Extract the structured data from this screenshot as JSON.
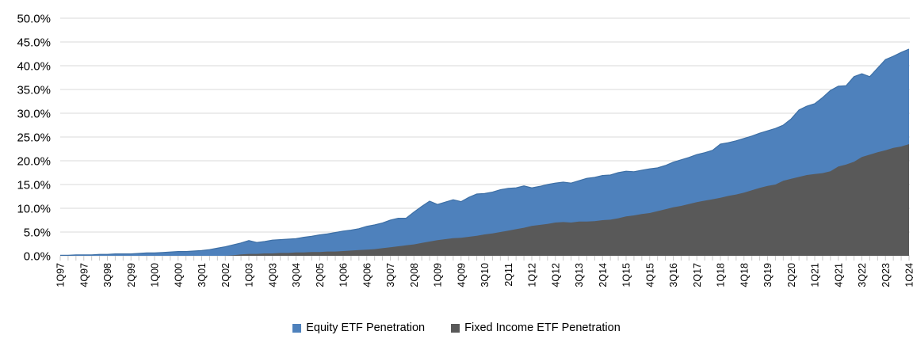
{
  "chart_data": {
    "type": "area",
    "title": "",
    "overlapping": true,
    "grid": true,
    "legend_position": "bottom",
    "ylim": [
      0,
      50
    ],
    "y_tick_labels": [
      "0.0%",
      "5.0%",
      "10.0%",
      "15.0%",
      "20.0%",
      "25.0%",
      "30.0%",
      "35.0%",
      "40.0%",
      "45.0%",
      "50.0%"
    ],
    "x_labels_shown_every": 3,
    "x": [
      "1Q97",
      "2Q97",
      "3Q97",
      "4Q97",
      "1Q98",
      "2Q98",
      "3Q98",
      "4Q98",
      "1Q99",
      "2Q99",
      "3Q99",
      "4Q99",
      "1Q00",
      "2Q00",
      "3Q00",
      "4Q00",
      "1Q01",
      "2Q01",
      "3Q01",
      "4Q01",
      "1Q02",
      "2Q02",
      "3Q02",
      "4Q02",
      "1Q03",
      "2Q03",
      "3Q03",
      "4Q03",
      "1Q04",
      "2Q04",
      "3Q04",
      "4Q04",
      "1Q05",
      "2Q05",
      "3Q05",
      "4Q05",
      "1Q06",
      "2Q06",
      "3Q06",
      "4Q06",
      "1Q07",
      "2Q07",
      "3Q07",
      "4Q07",
      "1Q08",
      "2Q08",
      "3Q08",
      "4Q08",
      "1Q09",
      "2Q09",
      "3Q09",
      "4Q09",
      "1Q10",
      "2Q10",
      "3Q10",
      "4Q10",
      "1Q11",
      "2Q11",
      "3Q11",
      "4Q11",
      "1Q12",
      "2Q12",
      "3Q12",
      "4Q12",
      "1Q13",
      "2Q13",
      "3Q13",
      "4Q13",
      "1Q14",
      "2Q14",
      "3Q14",
      "4Q14",
      "1Q15",
      "2Q15",
      "3Q15",
      "4Q15",
      "1Q16",
      "2Q16",
      "3Q16",
      "4Q16",
      "1Q17",
      "2Q17",
      "3Q17",
      "4Q17",
      "1Q18",
      "2Q18",
      "3Q18",
      "4Q18",
      "1Q19",
      "2Q19",
      "3Q19",
      "4Q19",
      "1Q20",
      "2Q20",
      "3Q20",
      "4Q20",
      "1Q21",
      "2Q21",
      "3Q21",
      "4Q21",
      "1Q22",
      "2Q22",
      "3Q22",
      "4Q22",
      "1Q23",
      "2Q23",
      "3Q23",
      "4Q23",
      "1Q24"
    ],
    "series": [
      {
        "name": "Equity ETF Penetration",
        "color": "#4E81BC",
        "edge_color": "#3D6FA5",
        "values": [
          0.1,
          0.1,
          0.2,
          0.2,
          0.2,
          0.3,
          0.3,
          0.4,
          0.4,
          0.4,
          0.5,
          0.6,
          0.6,
          0.7,
          0.8,
          0.9,
          0.9,
          1.0,
          1.1,
          1.3,
          1.6,
          1.9,
          2.3,
          2.7,
          3.2,
          2.8,
          3.0,
          3.3,
          3.4,
          3.5,
          3.6,
          3.9,
          4.1,
          4.4,
          4.6,
          4.9,
          5.2,
          5.4,
          5.7,
          6.2,
          6.5,
          6.9,
          7.5,
          7.9,
          7.9,
          9.2,
          10.4,
          11.5,
          10.8,
          11.3,
          11.8,
          11.4,
          12.3,
          13.0,
          13.1,
          13.4,
          13.9,
          14.2,
          14.3,
          14.7,
          14.3,
          14.6,
          15.0,
          15.3,
          15.5,
          15.3,
          15.8,
          16.3,
          16.5,
          16.9,
          17.0,
          17.5,
          17.8,
          17.7,
          18.0,
          18.3,
          18.5,
          19.0,
          19.7,
          20.2,
          20.7,
          21.3,
          21.7,
          22.2,
          23.5,
          23.8,
          24.2,
          24.7,
          25.2,
          25.8,
          26.3,
          26.8,
          27.5,
          28.8,
          30.7,
          31.5,
          32.0,
          33.3,
          34.8,
          35.7,
          35.8,
          37.7,
          38.3,
          37.7,
          39.5,
          41.3,
          42.0,
          42.8,
          43.5
        ]
      },
      {
        "name": "Fixed Income ETF Penetration",
        "color": "#595959",
        "edge_color": "#595959",
        "values": [
          0.0,
          0.0,
          0.0,
          0.0,
          0.0,
          0.0,
          0.0,
          0.0,
          0.0,
          0.0,
          0.0,
          0.0,
          0.0,
          0.0,
          0.0,
          0.0,
          0.0,
          0.0,
          0.0,
          0.0,
          0.0,
          0.0,
          0.1,
          0.3,
          0.4,
          0.4,
          0.5,
          0.5,
          0.6,
          0.6,
          0.7,
          0.7,
          0.8,
          0.8,
          0.9,
          0.9,
          1.0,
          1.1,
          1.2,
          1.3,
          1.4,
          1.6,
          1.8,
          2.0,
          2.2,
          2.4,
          2.7,
          3.0,
          3.3,
          3.5,
          3.7,
          3.8,
          4.0,
          4.2,
          4.5,
          4.7,
          5.0,
          5.3,
          5.6,
          5.9,
          6.3,
          6.5,
          6.7,
          7.0,
          7.1,
          7.0,
          7.2,
          7.2,
          7.3,
          7.5,
          7.6,
          7.9,
          8.3,
          8.5,
          8.8,
          9.0,
          9.4,
          9.8,
          10.2,
          10.5,
          10.9,
          11.3,
          11.6,
          11.9,
          12.2,
          12.6,
          12.9,
          13.3,
          13.8,
          14.3,
          14.7,
          15.0,
          15.8,
          16.2,
          16.6,
          17.0,
          17.2,
          17.4,
          17.8,
          18.8,
          19.2,
          19.8,
          20.8,
          21.3,
          21.8,
          22.2,
          22.7,
          23.0,
          23.5
        ]
      }
    ],
    "colors": {
      "gridline": "#D9D9D9",
      "tick": "#C9C9C9",
      "axis_text": "#000000",
      "plot_background": "#FFFFFF"
    }
  }
}
